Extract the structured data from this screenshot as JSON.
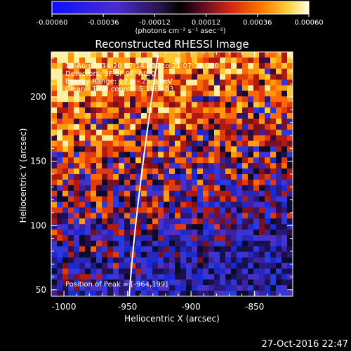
{
  "colorbar": {
    "tick_labels": [
      "-0.00060",
      "-0.00036",
      "-0.00012",
      "0.00012",
      "0.00036",
      "0.00060"
    ],
    "units_label": "(photons cm⁻² s⁻¹ asec⁻²)"
  },
  "plot": {
    "title": "Reconstructed RHESSI Image",
    "info_lines": [
      "17-Aug-2014 20:57:14.000 to 21:07:14.000",
      "Detectors: 3F 6F 9F, Att:0",
      "Energy Range: 12.0 - 25.0 keV",
      "Clean - Total counts: 5.19E+03"
    ],
    "peak_label": "Position of Peak = [-964,199]",
    "xlabel": "Heliocentric X (arcsec)",
    "ylabel": "Heliocentric Y (arcsec)",
    "x_ticks": [
      "-1000",
      "-950",
      "-900",
      "-850"
    ],
    "y_ticks": [
      "50",
      "100",
      "150",
      "200"
    ],
    "xlim": [
      -1010,
      -820
    ],
    "ylim": [
      45,
      235
    ]
  },
  "footer": {
    "date": "27-Oct-2016 22:47"
  }
}
